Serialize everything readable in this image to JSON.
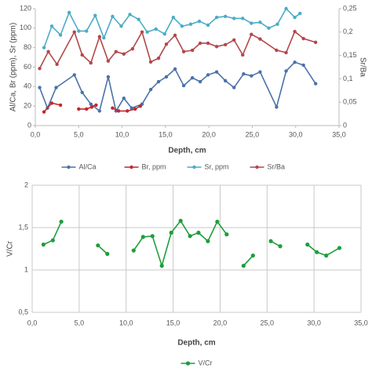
{
  "chart_data": [
    {
      "type": "line",
      "x_label": "Depth, cm",
      "y_label": "Al/Ca, Br (ppm), Sr (ppm)",
      "y2_label": "Sr/Ba",
      "xlim": [
        0,
        35
      ],
      "xticks": [
        {
          "value": 0,
          "label": "0,0"
        },
        {
          "value": 5,
          "label": "5,0"
        },
        {
          "value": 10,
          "label": "10,0"
        },
        {
          "value": 15,
          "label": "15,0"
        },
        {
          "value": 20,
          "label": "20,0"
        },
        {
          "value": 25,
          "label": "25,0"
        },
        {
          "value": 30,
          "label": "30,0"
        },
        {
          "value": 35,
          "label": "35,0"
        }
      ],
      "ylim": [
        0,
        120
      ],
      "yticks": [
        0,
        20,
        40,
        60,
        80,
        100,
        120
      ],
      "y2lim": [
        0,
        0.25
      ],
      "y2ticks": [
        0,
        {
          "value": 0.05,
          "label": "0,05"
        },
        {
          "value": 0.1,
          "label": "0,1"
        },
        {
          "value": 0.15,
          "label": "0,15"
        },
        {
          "value": 0.2,
          "label": "0,2"
        },
        {
          "value": 0.25,
          "label": "0,25"
        }
      ],
      "grid": false,
      "legend": "bottom",
      "series": [
        {
          "name": "Al/Ca",
          "color": "#4a72a8",
          "x": [
            0.5,
            1.4,
            2.4,
            4.5,
            5.4,
            6.4,
            7.4,
            8.4,
            9.3,
            10.2,
            11.1,
            12.3,
            13.3,
            14.2,
            15.1,
            16.1,
            17.1,
            18.1,
            19.0,
            19.9,
            20.9,
            21.9,
            22.9,
            24.0,
            24.9,
            25.9,
            27.8,
            28.9,
            29.9,
            30.9,
            32.3
          ],
          "values": [
            39,
            18,
            39,
            52,
            34,
            22,
            15,
            50,
            15,
            28,
            18,
            22,
            37,
            45,
            50,
            58,
            41,
            49,
            45,
            52,
            55,
            46,
            39,
            53,
            51,
            55,
            19,
            56,
            65,
            62,
            43
          ]
        },
        {
          "name": "Br, ppm",
          "color": "#c4262c",
          "x": [
            1.0,
            1.9,
            2.9,
            null,
            5.0,
            5.9,
            6.5,
            7.0,
            null,
            8.9,
            9.6,
            10.6,
            11.5,
            12.1
          ],
          "values": [
            14,
            23,
            21,
            null,
            17,
            17,
            19,
            21,
            null,
            18,
            15,
            15,
            17,
            20
          ]
        },
        {
          "name": "Sr, ppm",
          "color": "#4bacc6",
          "x": [
            1.0,
            1.9,
            2.9,
            3.9,
            5.0,
            5.9,
            6.9,
            7.9,
            8.9,
            9.9,
            10.9,
            11.9,
            12.9,
            13.9,
            14.9,
            15.9,
            16.9,
            17.9,
            18.9,
            19.9,
            20.9,
            21.9,
            22.9,
            23.9,
            24.9,
            25.9,
            26.9,
            27.9,
            28.9,
            29.9,
            30.5
          ],
          "values": [
            80,
            102,
            93,
            116,
            97,
            97,
            113,
            90,
            112,
            102,
            114,
            109,
            96,
            99,
            94,
            111,
            102,
            104,
            107,
            103,
            111,
            112,
            110,
            110,
            105,
            106,
            100,
            104,
            120,
            111,
            115
          ]
        },
        {
          "name": "Sr/Ba",
          "color": "#b3474a",
          "axis": "y2",
          "x": [
            0.5,
            1.5,
            2.5,
            4.5,
            5.4,
            6.4,
            7.4,
            8.4,
            9.3,
            10.2,
            11.2,
            12.3,
            13.3,
            14.2,
            15.1,
            16.1,
            17.1,
            18.1,
            19.0,
            19.9,
            20.9,
            21.9,
            22.9,
            23.9,
            24.9,
            25.9,
            27.8,
            28.9,
            29.9,
            30.9,
            32.3
          ],
          "values": [
            0.122,
            0.158,
            0.131,
            0.2,
            0.151,
            0.134,
            0.19,
            0.138,
            0.158,
            0.153,
            0.164,
            0.2,
            0.136,
            0.144,
            0.174,
            0.193,
            0.158,
            0.161,
            0.176,
            0.176,
            0.169,
            0.173,
            0.183,
            0.151,
            0.195,
            0.185,
            0.161,
            0.156,
            0.201,
            0.186,
            0.178
          ]
        }
      ]
    },
    {
      "type": "line",
      "x_label": "Depth, cm",
      "y_label": "V/Cr",
      "xlim": [
        0,
        35
      ],
      "xticks": [
        {
          "value": 0,
          "label": "0,0"
        },
        {
          "value": 5,
          "label": "5,0"
        },
        {
          "value": 10,
          "label": "10,0"
        },
        {
          "value": 15,
          "label": "15,0"
        },
        {
          "value": 20,
          "label": "20,0"
        },
        {
          "value": 25,
          "label": "25,0"
        },
        {
          "value": 30,
          "label": "30,0"
        },
        {
          "value": 35,
          "label": "35,0"
        }
      ],
      "ylim": [
        0.5,
        2
      ],
      "yticks": [
        {
          "value": 0.5,
          "label": "0,5"
        },
        1,
        {
          "value": 1.5,
          "label": "1,5"
        },
        2
      ],
      "grid": true,
      "legend": "bottom",
      "series": [
        {
          "name": "V/Cr",
          "color": "#1e9e3c",
          "x": [
            1.2,
            2.2,
            3.1,
            null,
            7.0,
            8.0,
            null,
            10.8,
            11.8,
            12.8,
            13.8,
            14.8,
            15.8,
            16.8,
            17.7,
            18.7,
            19.7,
            20.7,
            null,
            22.5,
            23.5,
            null,
            25.4,
            26.4,
            null,
            29.3,
            30.3,
            31.3,
            32.7
          ],
          "values": [
            1.3,
            1.35,
            1.57,
            null,
            1.29,
            1.19,
            null,
            1.23,
            1.39,
            1.4,
            1.05,
            1.44,
            1.58,
            1.4,
            1.44,
            1.34,
            1.57,
            1.42,
            null,
            1.05,
            1.17,
            null,
            1.34,
            1.28,
            null,
            1.3,
            1.21,
            1.17,
            1.26
          ]
        }
      ]
    }
  ]
}
